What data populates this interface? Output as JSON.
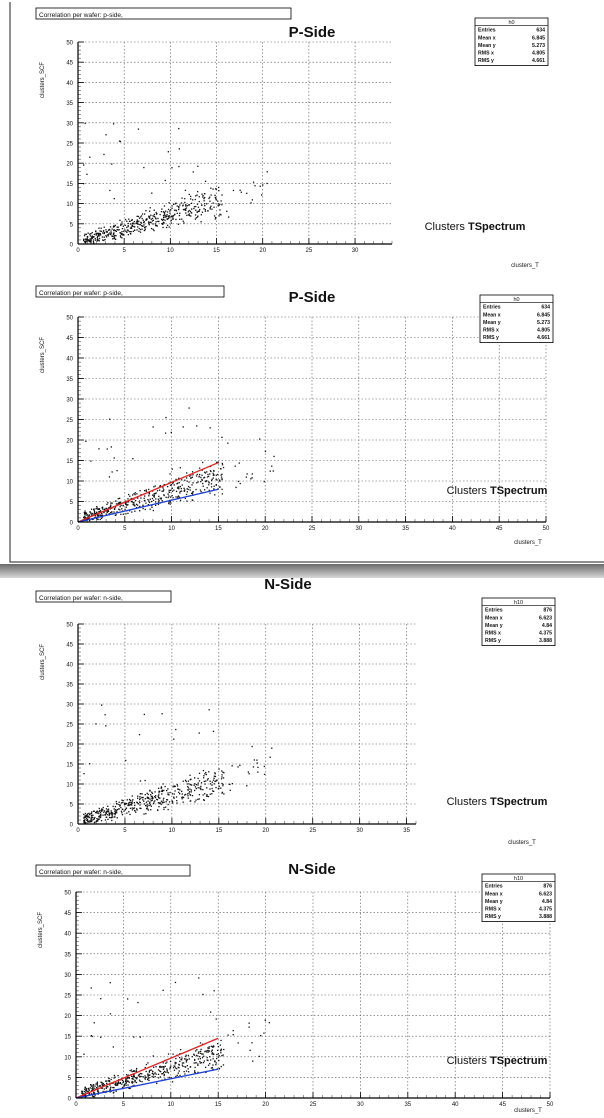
{
  "chart_data": [
    {
      "type": "scatter",
      "heading": "P-Side",
      "title": "Correlation per wafer: p-side,",
      "xlabel": "clusters_T",
      "ylabel": "clusters_SCF",
      "xlim": [
        0,
        34
      ],
      "ylim": [
        0,
        50
      ],
      "xticks": [
        "0",
        "5",
        "10",
        "15",
        "20",
        "25",
        "30"
      ],
      "yticks": [
        "0",
        "5",
        "10",
        "15",
        "20",
        "25",
        "30",
        "35",
        "40",
        "45",
        "50"
      ],
      "grid": true,
      "stats": {
        "name": "h0",
        "rows": [
          [
            "Entries",
            "634"
          ],
          [
            "Mean x",
            "6.845"
          ],
          [
            "Mean y",
            "5.273"
          ],
          [
            "RMS x",
            "4.805"
          ],
          [
            "RMS y",
            "4.661"
          ]
        ]
      },
      "annotation": {
        "prefix": "Clusters ",
        "bold": "TSpectrum"
      },
      "trend": "points rise roughly linearly, dense for x 1–15, y 1–12",
      "lines": []
    },
    {
      "type": "scatter",
      "heading": "P-Side",
      "title": "Correlation per wafer: p-side,",
      "xlabel": "clusters_T",
      "ylabel": "clusters_SCF",
      "xlim": [
        0,
        50
      ],
      "ylim": [
        0,
        50
      ],
      "xticks": [
        "0",
        "5",
        "10",
        "15",
        "20",
        "25",
        "30",
        "35",
        "40",
        "45",
        "50"
      ],
      "yticks": [
        "0",
        "5",
        "10",
        "15",
        "20",
        "25",
        "30",
        "35",
        "40",
        "45",
        "50"
      ],
      "grid": true,
      "stats": {
        "name": "h0",
        "rows": [
          [
            "Entries",
            "634"
          ],
          [
            "Mean x",
            "6.845"
          ],
          [
            "Mean y",
            "5.273"
          ],
          [
            "RMS x",
            "4.805"
          ],
          [
            "RMS y",
            "4.661"
          ]
        ]
      },
      "annotation": {
        "prefix": "Clusters ",
        "bold": "TSpectrum"
      },
      "trend": "points rise roughly linearly, dense for x 1–15, y 1–12",
      "lines": [
        {
          "color": "#e8201f",
          "x": [
            0,
            15
          ],
          "y": [
            0,
            14.5
          ]
        },
        {
          "color": "#1d3fd6",
          "x": [
            0,
            15
          ],
          "y": [
            0,
            8
          ]
        }
      ]
    },
    {
      "type": "scatter",
      "heading": "N-Side",
      "title": "Correlation per wafer: n-side,",
      "xlabel": "clusters_T",
      "ylabel": "clusters_SCF",
      "xlim": [
        0,
        36
      ],
      "ylim": [
        0,
        50
      ],
      "xticks": [
        "0",
        "5",
        "10",
        "15",
        "20",
        "25",
        "30",
        "35"
      ],
      "yticks": [
        "0",
        "5",
        "10",
        "15",
        "20",
        "25",
        "30",
        "35",
        "40",
        "45",
        "50"
      ],
      "grid": true,
      "stats": {
        "name": "h10",
        "rows": [
          [
            "Entries",
            "876"
          ],
          [
            "Mean x",
            "6.623"
          ],
          [
            "Mean y",
            "4.84"
          ],
          [
            "RMS x",
            "4.375"
          ],
          [
            "RMS y",
            "3.888"
          ]
        ]
      },
      "annotation": {
        "prefix": "Clusters ",
        "bold": "TSpectrum"
      },
      "trend": "points rise roughly linearly, dense for x 1–15, y 1–12",
      "lines": []
    },
    {
      "type": "scatter",
      "heading": "N-Side",
      "title": "Correlation per wafer: n-side,",
      "xlabel": "clusters_T",
      "ylabel": "clusters_SCF",
      "xlim": [
        0,
        50
      ],
      "ylim": [
        0,
        50
      ],
      "xticks": [
        "0",
        "5",
        "10",
        "15",
        "20",
        "25",
        "30",
        "35",
        "40",
        "45",
        "50"
      ],
      "yticks": [
        "0",
        "5",
        "10",
        "15",
        "20",
        "25",
        "30",
        "35",
        "40",
        "45",
        "50"
      ],
      "grid": true,
      "stats": {
        "name": "h10",
        "rows": [
          [
            "Entries",
            "876"
          ],
          [
            "Mean x",
            "6.623"
          ],
          [
            "Mean y",
            "4.84"
          ],
          [
            "RMS x",
            "4.375"
          ],
          [
            "RMS y",
            "3.888"
          ]
        ]
      },
      "annotation": {
        "prefix": "Clusters ",
        "bold": "TSpectrum"
      },
      "trend": "points rise roughly linearly, dense for x 1–15, y 1–12",
      "lines": [
        {
          "color": "#e8201f",
          "x": [
            0,
            15
          ],
          "y": [
            0,
            14.5
          ]
        },
        {
          "color": "#1d3fd6",
          "x": [
            0,
            15
          ],
          "y": [
            0,
            7
          ]
        }
      ]
    }
  ]
}
